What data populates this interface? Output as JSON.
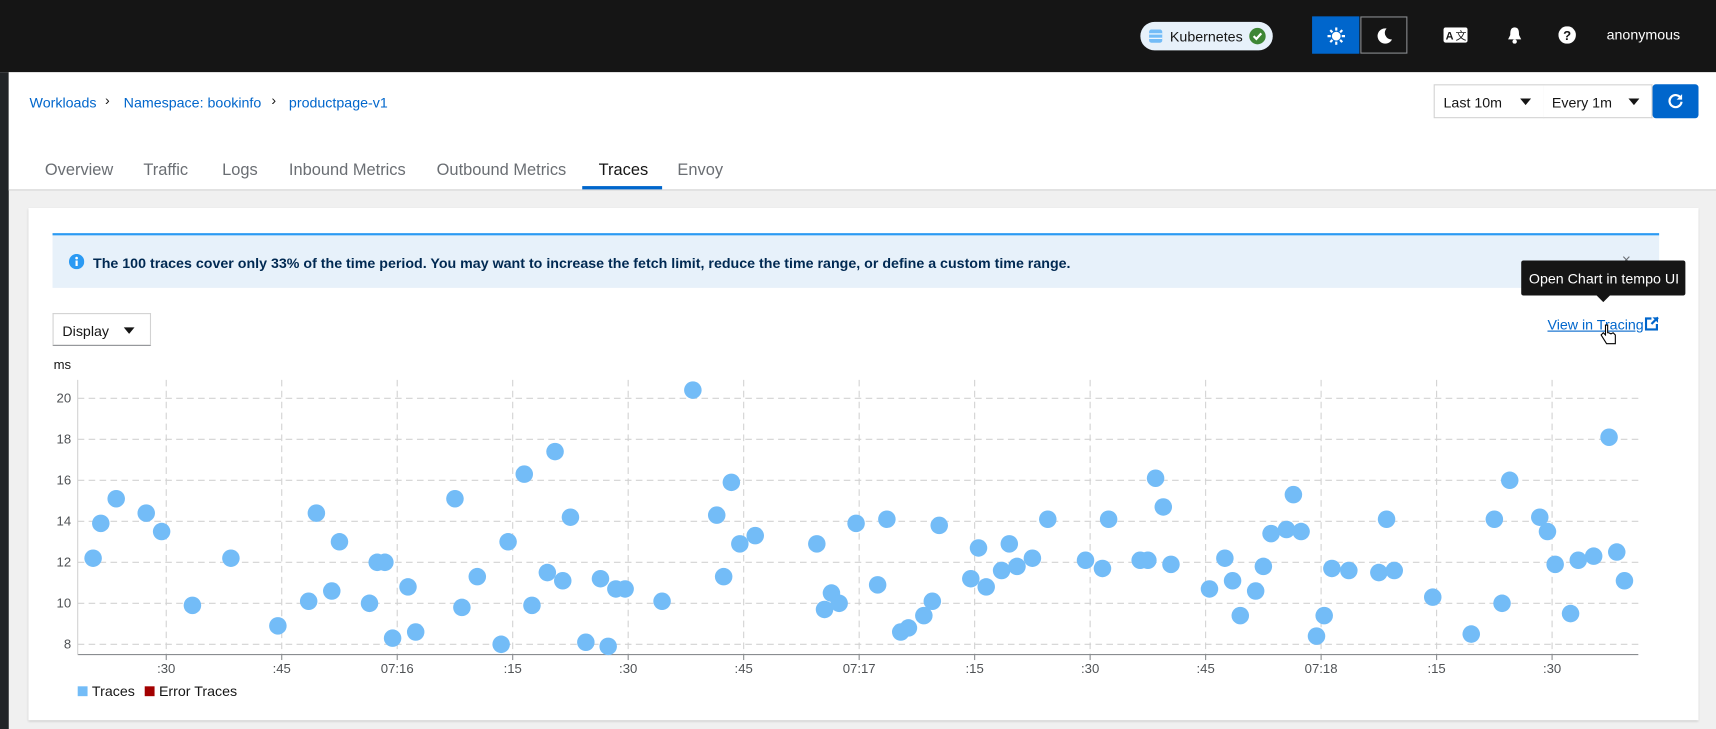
{
  "masthead": {
    "cluster": "Kubernetes",
    "user": "anonymous"
  },
  "breadcrumb": [
    "Workloads",
    "Namespace: bookinfo",
    "productpage-v1"
  ],
  "time_range": "Last 10m",
  "refresh_interval": "Every 1m",
  "tabs": [
    "Overview",
    "Traffic",
    "Logs",
    "Inbound Metrics",
    "Outbound Metrics",
    "Traces",
    "Envoy"
  ],
  "alert": "The 100 traces cover only 33% of the time period. You may want to increase the fetch limit, reduce the time range, or define a custom time range.",
  "tooltip": "Open Chart in tempo UI",
  "display_select": "Display",
  "link": "View in Tracing",
  "chart_data": {
    "type": "scatter",
    "y_label": "ms",
    "grid": true,
    "xlim": [
      26118.5,
      26321.2
    ],
    "xticks": [
      {
        "value": 26130,
        "label": ":30"
      },
      {
        "value": 26145,
        "label": ":45"
      },
      {
        "value": 26160,
        "label": "07:16"
      },
      {
        "value": 26175,
        "label": ":15"
      },
      {
        "value": 26190,
        "label": ":30"
      },
      {
        "value": 26205,
        "label": ":45"
      },
      {
        "value": 26220,
        "label": "07:17"
      },
      {
        "value": 26235,
        "label": ":15"
      },
      {
        "value": 26250,
        "label": ":30"
      },
      {
        "value": 26265,
        "label": ":45"
      },
      {
        "value": 26280,
        "label": "07:18"
      },
      {
        "value": 26295,
        "label": ":15"
      },
      {
        "value": 26310,
        "label": ":30"
      }
    ],
    "ylim": [
      7.5,
      20.9
    ],
    "yticks": [
      8,
      10,
      12,
      14,
      16,
      18,
      20
    ],
    "series": [
      {
        "name": "Traces",
        "color": "#73bcf7",
        "x": [
          26120.5,
          26121.5,
          26123.5,
          26127.4,
          26129.4,
          26133.4,
          26138.4,
          26144.5,
          26148.5,
          26149.5,
          26151.5,
          26152.5,
          26156.4,
          26157.4,
          26158.4,
          26159.4,
          26161.4,
          26162.4,
          26167.5,
          26168.4,
          26170.4,
          26173.5,
          26174.4,
          26176.5,
          26177.5,
          26179.5,
          26180.5,
          26181.5,
          26182.5,
          26184.5,
          26186.4,
          26187.4,
          26188.4,
          26189.6,
          26194.4,
          26198.4,
          26201.5,
          26202.4,
          26203.4,
          26204.5,
          26206.5,
          26214.5,
          26215.5,
          26216.4,
          26217.4,
          26219.6,
          26222.4,
          26223.6,
          26225.4,
          26226.4,
          26228.4,
          26229.5,
          26230.4,
          26234.5,
          26235.5,
          26236.5,
          26238.5,
          26239.5,
          26240.5,
          26242.5,
          26244.5,
          26249.4,
          26251.6,
          26252.4,
          26256.5,
          26257.5,
          26258.5,
          26259.5,
          26260.5,
          26265.5,
          26267.5,
          26268.5,
          26269.5,
          26271.5,
          26272.5,
          26273.5,
          26275.5,
          26276.4,
          26277.4,
          26279.4,
          26280.4,
          26281.4,
          26283.6,
          26287.5,
          26288.5,
          26289.5,
          26294.5,
          26299.5,
          26302.5,
          26303.5,
          26304.5,
          26308.4,
          26309.4,
          26310.4,
          26312.4,
          26313.4,
          26315.4,
          26317.4,
          26318.4,
          26319.4
        ],
        "values": [
          12.2,
          13.9,
          15.1,
          14.4,
          13.5,
          9.9,
          12.2,
          8.9,
          10.1,
          14.4,
          10.6,
          13.0,
          10.0,
          12.0,
          12.0,
          8.3,
          10.8,
          8.6,
          15.1,
          9.8,
          11.3,
          8.0,
          13.0,
          16.3,
          9.9,
          11.5,
          17.4,
          11.1,
          14.2,
          8.1,
          11.2,
          7.9,
          10.7,
          10.7,
          10.1,
          20.4,
          14.3,
          11.3,
          15.9,
          12.9,
          13.3,
          12.9,
          9.7,
          10.5,
          10.0,
          13.9,
          10.9,
          14.1,
          8.6,
          8.8,
          9.4,
          10.1,
          13.8,
          11.2,
          12.7,
          10.8,
          11.6,
          12.9,
          11.8,
          12.2,
          14.1,
          12.1,
          11.7,
          14.1,
          12.1,
          12.1,
          16.1,
          14.7,
          11.9,
          10.7,
          12.2,
          11.1,
          9.4,
          10.6,
          11.8,
          13.4,
          13.6,
          15.3,
          13.5,
          8.4,
          9.4,
          11.7,
          11.6,
          11.5,
          14.1,
          11.6,
          10.3,
          8.5,
          14.1,
          10.0,
          16.0,
          14.2,
          13.5,
          11.9,
          9.5,
          12.1,
          12.3,
          18.1,
          12.5,
          11.1
        ]
      },
      {
        "name": "Error Traces",
        "color": "#a30000",
        "x": [],
        "values": []
      }
    ]
  }
}
